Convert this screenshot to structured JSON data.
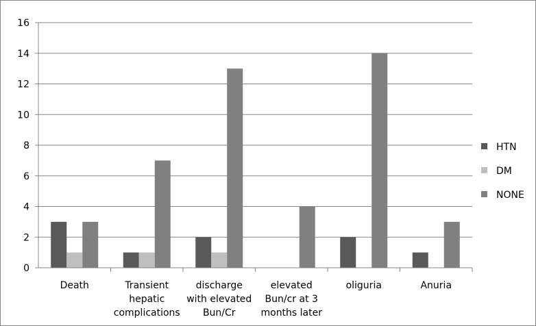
{
  "chart_data": {
    "type": "bar",
    "title": "",
    "xlabel": "",
    "ylabel": "",
    "ylim": [
      0,
      16
    ],
    "yticks": [
      0,
      2,
      4,
      6,
      8,
      10,
      12,
      14,
      16
    ],
    "grid": "horizontal",
    "legend_position": "right",
    "categories": [
      [
        "Death"
      ],
      [
        "Transient",
        "hepatic",
        "complications"
      ],
      [
        "discharge",
        "with elevated",
        "Bun/Cr"
      ],
      [
        "elevated",
        "Bun/cr at 3",
        "months later"
      ],
      [
        "oliguria"
      ],
      [
        "Anuria"
      ]
    ],
    "series": [
      {
        "name": "HTN",
        "color": "#595959",
        "values": [
          3,
          1,
          2,
          0,
          2,
          1
        ]
      },
      {
        "name": "DM",
        "color": "#bfbfbf",
        "values": [
          1,
          1,
          1,
          0,
          0,
          0
        ]
      },
      {
        "name": "NONE",
        "color": "#808080",
        "values": [
          3,
          7,
          13,
          4,
          14,
          3
        ]
      }
    ]
  }
}
